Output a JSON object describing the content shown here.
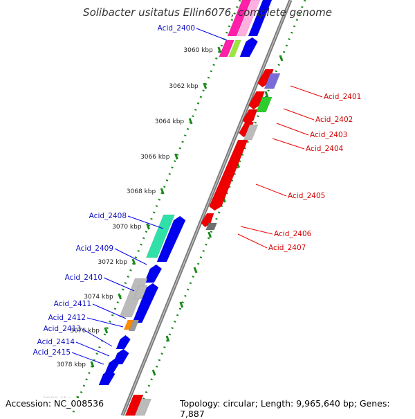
{
  "title": "Solibacter usitatus Ellin6076, complete genome",
  "footer": {
    "accession": "Accession: NC_008536",
    "summary": "Topology: circular; Length: 9,965,640 bp; Genes: 7,887"
  },
  "ticks": [
    "3060 kbp",
    "3062 kbp",
    "3064 kbp",
    "3066 kbp",
    "3068 kbp",
    "3070 kbp",
    "3072 kbp",
    "3074 kbp",
    "3076 kbp",
    "3078 kbp",
    "3080 kbp"
  ],
  "forward_labels": [
    "Acid_2400",
    "Acid_2408",
    "Acid_2409",
    "Acid_2410",
    "Acid_2411",
    "Acid_2412",
    "Acid_2413",
    "Acid_2414",
    "Acid_2415"
  ],
  "reverse_labels": [
    "Acid_2401",
    "Acid_2402",
    "Acid_2403",
    "Acid_2404",
    "Acid_2405",
    "Acid_2406",
    "Acid_2407"
  ],
  "colors": {
    "forward": "#0000ee",
    "reverse": "#ee0000",
    "backbone": "#808080",
    "tick_dots": "#1a8a1a",
    "magenta": "#ff1fa8",
    "lime": "#9be63a",
    "violet": "#7a6cd8",
    "green": "#2ecc2e",
    "grey": "#bbbbbb",
    "darkgrey": "#707070",
    "teal": "#2fe0a8",
    "orange": "#ff8c00"
  }
}
